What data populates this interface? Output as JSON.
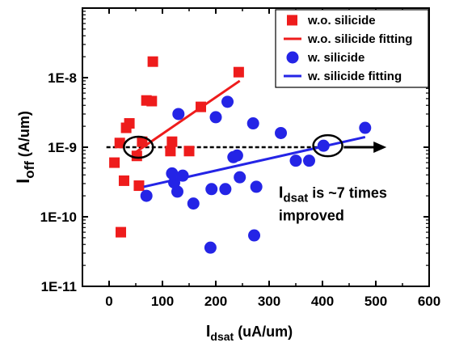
{
  "chart_data": {
    "type": "scatter",
    "xlabel": {
      "main": "I",
      "sub": "dsat",
      "rest": " (uA/um)"
    },
    "ylabel": {
      "main": "I",
      "sub": "off",
      "rest": " (A/um)"
    },
    "xlim": [
      -50,
      600
    ],
    "ylim": [
      1e-11,
      1e-07
    ],
    "y_scale": "log",
    "x_ticks": [
      0,
      100,
      200,
      300,
      400,
      500,
      600
    ],
    "x_tick_labels": [
      "0",
      "100",
      "200",
      "300",
      "400",
      "500",
      "600"
    ],
    "y_ticks": [
      1e-11,
      1e-10,
      1e-09,
      1e-08
    ],
    "y_tick_labels": [
      "1E-11",
      "1E-10",
      "1E-9",
      "1E-8"
    ],
    "grid": false,
    "legend_position": "top-right",
    "series": [
      {
        "name": "w.o. silicide",
        "marker": "square",
        "color": "#ee1c1c",
        "points": [
          [
            10,
            6e-10
          ],
          [
            20,
            1.15e-09
          ],
          [
            22,
            6e-11
          ],
          [
            28,
            3.3e-10
          ],
          [
            32,
            1.9e-09
          ],
          [
            38,
            2.2e-09
          ],
          [
            52,
            7.5e-10
          ],
          [
            56,
            2.8e-10
          ],
          [
            62,
            1.2e-09
          ],
          [
            70,
            4.7e-09
          ],
          [
            80,
            4.6e-09
          ],
          [
            82,
            1.7e-08
          ],
          [
            115,
            8.8e-10
          ],
          [
            118,
            1.2e-09
          ],
          [
            150,
            8.8e-10
          ],
          [
            172,
            3.8e-09
          ],
          [
            243,
            1.2e-08
          ]
        ]
      },
      {
        "name": "w.o. silicide fitting",
        "line_type": "line",
        "color": "#ee1c1c",
        "points": [
          [
            45,
            8e-10
          ],
          [
            245,
            9e-09
          ]
        ]
      },
      {
        "name": "w. silicide",
        "marker": "circle",
        "color": "#2424e6",
        "points": [
          [
            70,
            2e-10
          ],
          [
            118,
            4.2e-10
          ],
          [
            122,
            3.1e-10
          ],
          [
            128,
            2.3e-10
          ],
          [
            130,
            3e-09
          ],
          [
            138,
            3.9e-10
          ],
          [
            158,
            1.55e-10
          ],
          [
            190,
            3.6e-11
          ],
          [
            192,
            2.5e-10
          ],
          [
            200,
            2.7e-09
          ],
          [
            218,
            2.5e-10
          ],
          [
            222,
            4.5e-09
          ],
          [
            233,
            7.2e-10
          ],
          [
            240,
            7.6e-10
          ],
          [
            245,
            3.7e-10
          ],
          [
            270,
            2.2e-09
          ],
          [
            272,
            5.4e-11
          ],
          [
            276,
            2.7e-10
          ],
          [
            322,
            1.6e-09
          ],
          [
            350,
            6.4e-10
          ],
          [
            375,
            6.4e-10
          ],
          [
            402,
            1.05e-09
          ],
          [
            480,
            1.9e-09
          ]
        ]
      },
      {
        "name": "w. silicide fitting",
        "line_type": "line",
        "color": "#2424e6",
        "points": [
          [
            65,
            2.7e-10
          ],
          [
            480,
            1.4e-09
          ]
        ]
      }
    ],
    "reference_line": {
      "y": 1e-09,
      "x_range": [
        -5,
        410
      ],
      "style": "dashed",
      "color": "#000000"
    },
    "highlight_circles": [
      {
        "x": 55,
        "y": 1e-09
      },
      {
        "x": 410,
        "y": 1.05e-09
      }
    ],
    "arrow": {
      "from": [
        440,
        1e-09
      ],
      "to": [
        520,
        1e-09
      ]
    },
    "annotation": {
      "line1_main": "I",
      "line1_sub": "dsat",
      "line1_rest": " is ~7 times",
      "line2": "improved",
      "x": 318,
      "y": 4.2e-10
    }
  }
}
